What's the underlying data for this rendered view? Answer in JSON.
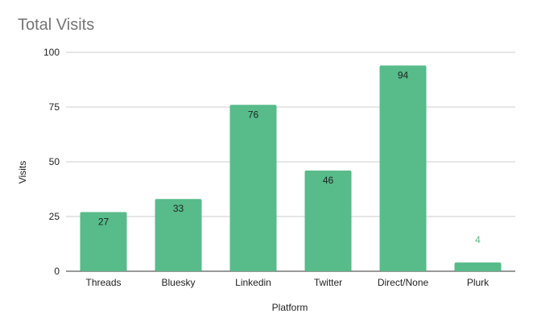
{
  "chart_data": {
    "type": "bar",
    "title": "Total Visits",
    "xlabel": "Platform",
    "ylabel": "Visits",
    "categories": [
      "Threads",
      "Bluesky",
      "Linkedin",
      "Twitter",
      "Direct/None",
      "Plurk"
    ],
    "values": [
      27,
      33,
      76,
      46,
      94,
      4
    ],
    "ylim": [
      0,
      100
    ],
    "yticks": [
      0,
      25,
      50,
      75,
      100
    ],
    "grid": true,
    "legend": "none",
    "colors": {
      "bar": "#57bb8a",
      "gridline": "#cccccc",
      "baseline": "#333333",
      "label_inside": "#222222",
      "label_outside": "#57bb8a"
    }
  }
}
